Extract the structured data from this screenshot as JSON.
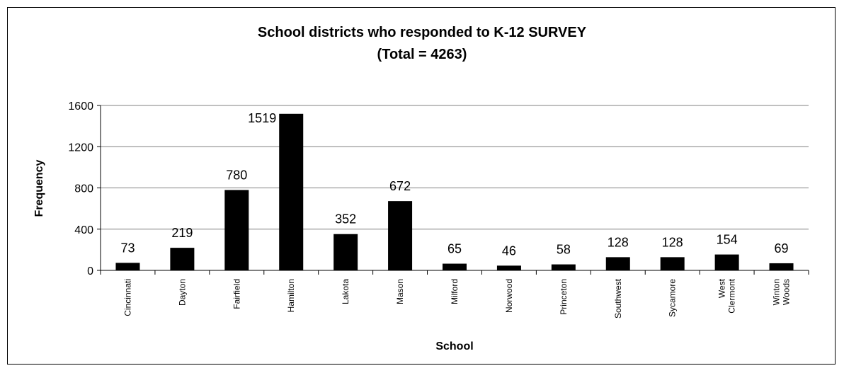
{
  "chart_data": {
    "type": "bar",
    "title": "School districts who responded to K-12 SURVEY",
    "subtitle": "(Total = 4263)",
    "xlabel": "School",
    "ylabel": "Frequency",
    "ylim": [
      0,
      1600
    ],
    "yticks": [
      "0",
      "400",
      "800",
      "1200",
      "1600"
    ],
    "grid": true,
    "legend": false,
    "bar_color": "#000000",
    "categories": [
      [
        "Cincinnati"
      ],
      [
        "Dayton"
      ],
      [
        "Fairfield"
      ],
      [
        "Hamilton"
      ],
      [
        "Lakota"
      ],
      [
        "Mason"
      ],
      [
        "Milford"
      ],
      [
        "Norwood"
      ],
      [
        "Princeton"
      ],
      [
        "Southwest"
      ],
      [
        "Sycamore"
      ],
      [
        "West",
        "Clermont"
      ],
      [
        "Winton",
        "Woods"
      ]
    ],
    "values": [
      73,
      219,
      780,
      1519,
      352,
      672,
      65,
      46,
      58,
      128,
      128,
      154,
      69
    ]
  }
}
